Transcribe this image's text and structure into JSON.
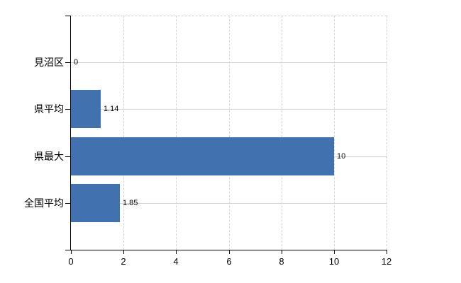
{
  "chart_data": {
    "type": "bar",
    "orientation": "horizontal",
    "title": "",
    "xlabel": "",
    "ylabel": "",
    "categories": [
      "見沼区",
      "県平均",
      "県最大",
      "全国平均"
    ],
    "values": [
      0,
      1.14,
      10,
      1.85
    ],
    "value_labels": [
      "0",
      "1.14",
      "10",
      "1.85"
    ],
    "xlim": [
      0,
      12
    ],
    "xticks": [
      0,
      2,
      4,
      6,
      8,
      10,
      12
    ],
    "xtick_labels": [
      "0",
      "2",
      "4",
      "6",
      "8",
      "10",
      "12"
    ],
    "grid": "on",
    "legend": "none",
    "bar_color": "#4171AE",
    "gridline_color": "#d5d3d2",
    "axis_color": "#000000",
    "label_color": "#000000",
    "background": "#ffffff"
  }
}
